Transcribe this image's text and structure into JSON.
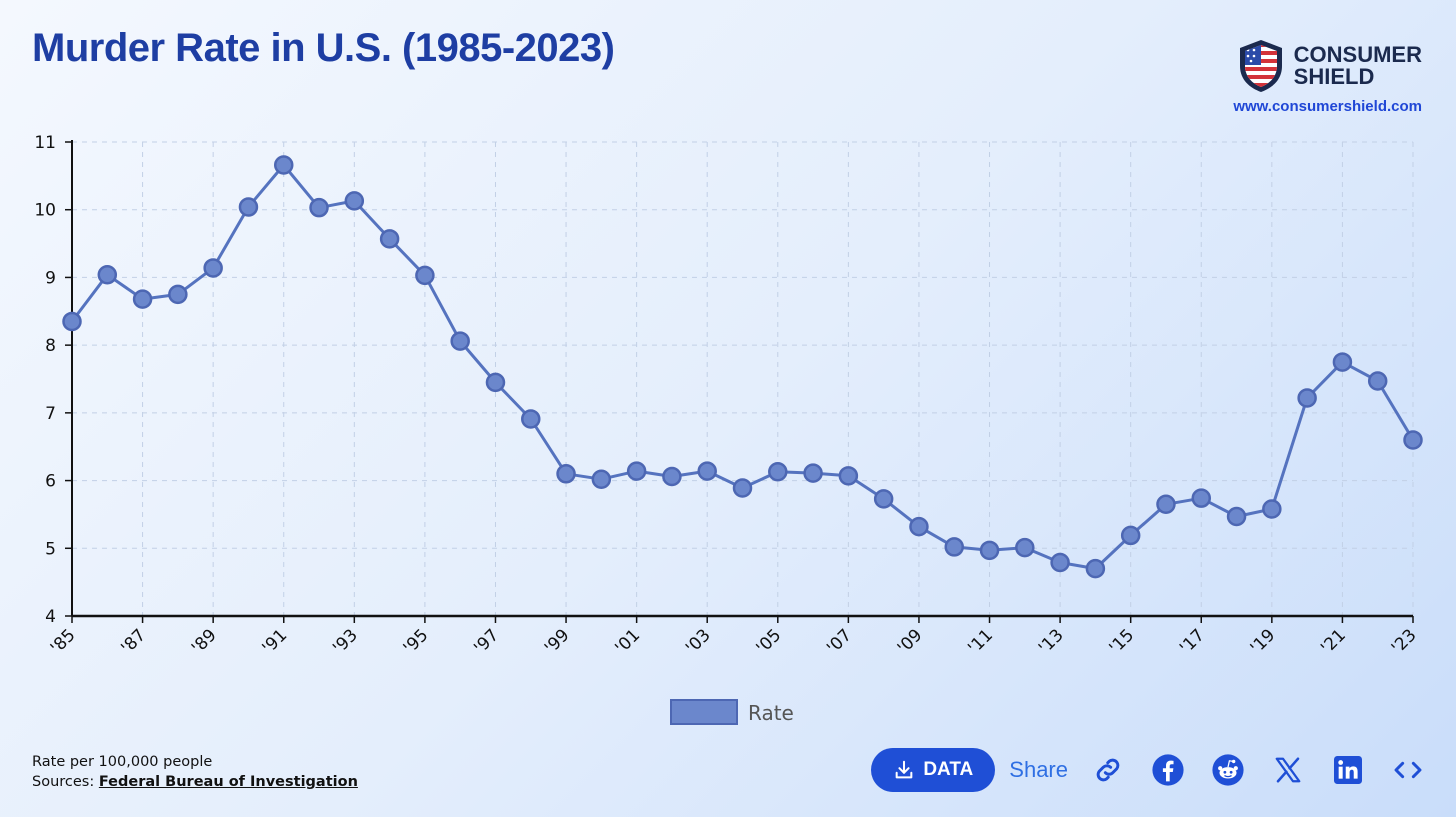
{
  "title": "Murder Rate in U.S. (1985-2023)",
  "brand": {
    "name_line1": "CONSUMER",
    "name_line2": "SHIELD",
    "url": "www.consumershield.com"
  },
  "footer": {
    "note": "Rate per 100,000 people",
    "sources_label": "Sources:",
    "source": "Federal Bureau of Investigation"
  },
  "toolbar": {
    "data_label": "DATA",
    "share_label": "Share"
  },
  "icons": [
    "download-icon",
    "link-icon",
    "facebook-icon",
    "reddit-icon",
    "x-icon",
    "linkedin-icon",
    "embed-icon"
  ],
  "colors": {
    "title": "#1e3ea3",
    "line": "#5573bf",
    "point_fill": "#6b87cc",
    "button": "#1f4fd6",
    "share": "#2f6fe3"
  },
  "chart_data": {
    "type": "line",
    "title": "",
    "xlabel": "",
    "ylabel": "",
    "x": [
      "'85",
      "'86",
      "'87",
      "'88",
      "'89",
      "'90",
      "'91",
      "'92",
      "'93",
      "'94",
      "'95",
      "'96",
      "'97",
      "'98",
      "'99",
      "'00",
      "'01",
      "'02",
      "'03",
      "'04",
      "'05",
      "'06",
      "'07",
      "'08",
      "'09",
      "'10",
      "'11",
      "'12",
      "'13",
      "'14",
      "'15",
      "'16",
      "'17",
      "'18",
      "'19",
      "'20",
      "'21",
      "'22",
      "'23"
    ],
    "x_tick_labels": [
      "'85",
      "'87",
      "'89",
      "'91",
      "'93",
      "'95",
      "'97",
      "'99",
      "'01",
      "'03",
      "'05",
      "'07",
      "'09",
      "'11",
      "'13",
      "'15",
      "'17",
      "'19",
      "'21",
      "'23"
    ],
    "series": [
      {
        "name": "Rate",
        "values": [
          8.35,
          9.04,
          8.68,
          8.75,
          9.14,
          10.04,
          10.66,
          10.03,
          10.13,
          9.57,
          9.03,
          8.06,
          7.45,
          6.91,
          6.1,
          6.02,
          6.14,
          6.06,
          6.14,
          5.89,
          6.13,
          6.11,
          6.07,
          5.73,
          5.32,
          5.02,
          4.97,
          5.01,
          4.79,
          4.7,
          5.19,
          5.65,
          5.74,
          5.47,
          5.58,
          7.22,
          7.75,
          7.47,
          6.6
        ]
      }
    ],
    "ylim": [
      4,
      11
    ],
    "y_ticks": [
      4,
      5,
      6,
      7,
      8,
      9,
      10,
      11
    ],
    "grid": true,
    "legend": "bottom-center"
  }
}
